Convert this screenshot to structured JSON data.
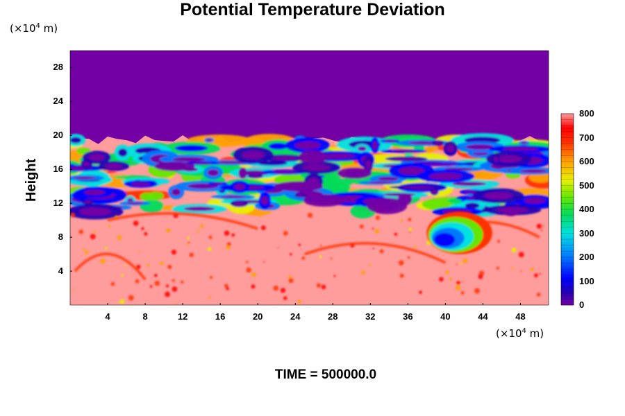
{
  "title": "Potential Temperature Deviation",
  "time_label": "TIME = 500000.0",
  "colors": {
    "upper_layer": "#7300a5",
    "background_field": "#ff9c9c"
  },
  "chart_data": {
    "type": "heatmap",
    "title": "Potential Temperature Deviation",
    "xlabel": "",
    "ylabel": "Height",
    "x_unit_label": "(×10",
    "x_unit_exp": "4",
    "x_unit_tail": " m)",
    "y_unit_label": "(×10",
    "y_unit_exp": "4",
    "y_unit_tail": " m)",
    "xlim": [
      0,
      51
    ],
    "ylim": [
      0,
      30
    ],
    "x_ticks": [
      4,
      8,
      12,
      16,
      20,
      24,
      28,
      32,
      36,
      40,
      44,
      48
    ],
    "y_ticks": [
      4,
      8,
      12,
      16,
      20,
      24,
      28
    ],
    "colorbar": {
      "range": [
        0,
        800
      ],
      "tick_values": [
        0,
        100,
        200,
        300,
        400,
        500,
        600,
        700,
        800
      ],
      "stops": [
        {
          "value": 0,
          "color": "#7300a5"
        },
        {
          "value": 50,
          "color": "#2800b4"
        },
        {
          "value": 110,
          "color": "#0000ff"
        },
        {
          "value": 200,
          "color": "#0078ff"
        },
        {
          "value": 300,
          "color": "#00e1e1"
        },
        {
          "value": 380,
          "color": "#00dc5a"
        },
        {
          "value": 450,
          "color": "#64e600"
        },
        {
          "value": 520,
          "color": "#e6f000"
        },
        {
          "value": 600,
          "color": "#ffa000"
        },
        {
          "value": 680,
          "color": "#ff3200"
        },
        {
          "value": 740,
          "color": "#ff0000"
        },
        {
          "value": 800,
          "color": "#ff9c9c"
        }
      ]
    },
    "field_summary": {
      "upper_uniform_layer": {
        "value": 0,
        "from_height": 19.5,
        "to_height": 30
      },
      "lower_region_dominant_value": 800,
      "turbulent_band": {
        "from_height": 11,
        "to_height": 19.5
      },
      "low_anomaly_region": {
        "x_range": [
          38,
          45
        ],
        "y_range": [
          6,
          11
        ],
        "min_value": 100
      }
    }
  }
}
